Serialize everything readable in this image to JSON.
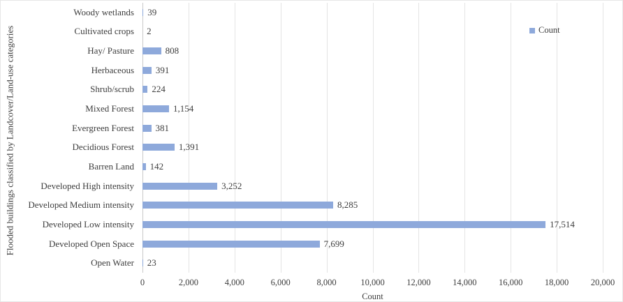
{
  "chart_data": {
    "type": "bar",
    "orientation": "horizontal",
    "title": "",
    "xlabel": "Count",
    "ylabel": "Flooded buildings classified by Landcover/Land-use categories",
    "legend": {
      "position": "right",
      "entries": [
        "Count"
      ]
    },
    "categories": [
      "Woody wetlands",
      "Cultivated crops",
      "Hay/ Pasture",
      "Herbaceous",
      "Shrub/scrub",
      "Mixed Forest",
      "Evergreen Forest",
      "Decidious Forest",
      "Barren Land",
      "Developed High intensity",
      "Developed Medium intensity",
      "Developed Low intensity",
      "Developed Open Space",
      "Open Water"
    ],
    "values": [
      39,
      2,
      808,
      391,
      224,
      1154,
      381,
      1391,
      142,
      3252,
      8285,
      17514,
      7699,
      23
    ],
    "value_labels": [
      "39",
      "2",
      "808",
      "391",
      "224",
      "1,154",
      "381",
      "1,391",
      "142",
      "3,252",
      "8,285",
      "17,514",
      "7,699",
      "23"
    ],
    "xlim": [
      0,
      20000
    ],
    "xticks": [
      0,
      2000,
      4000,
      6000,
      8000,
      10000,
      12000,
      14000,
      16000,
      18000,
      20000
    ],
    "xtick_labels": [
      "0",
      "2,000",
      "4,000",
      "6,000",
      "8,000",
      "10,000",
      "12,000",
      "14,000",
      "16,000",
      "18,000",
      "20,000"
    ],
    "grid": true,
    "bar_color": "#8EA9DB",
    "gridline_color": "#e4e4e4",
    "text_color": "#3d3d3d"
  }
}
